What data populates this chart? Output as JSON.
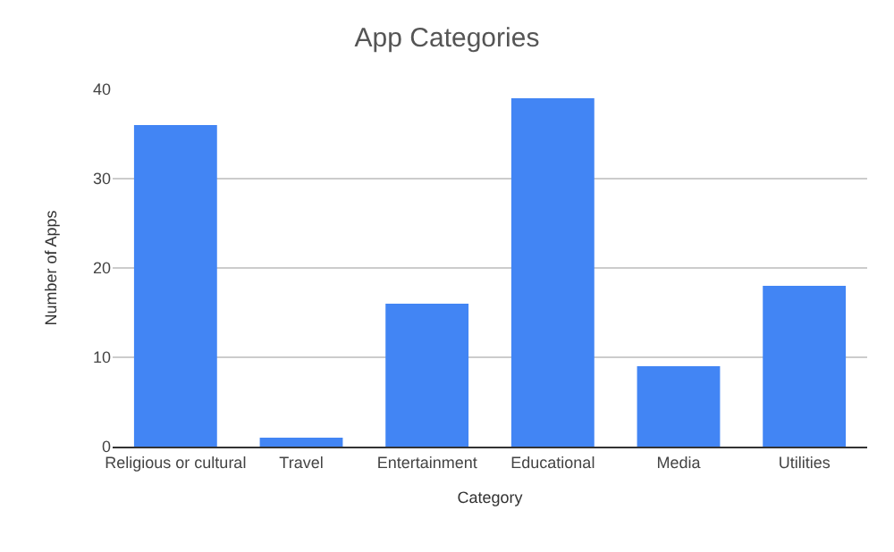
{
  "chart_data": {
    "type": "bar",
    "title": "App Categories",
    "xlabel": "Category",
    "ylabel": "Number of Apps",
    "categories": [
      "Religious or cultural",
      "Travel",
      "Entertainment",
      "Educational",
      "Media",
      "Utilities"
    ],
    "values": [
      36,
      1,
      16,
      39,
      9,
      18
    ],
    "color": "#4285f4",
    "ylim": [
      0,
      40
    ],
    "yticks": [
      0,
      10,
      20,
      30,
      40
    ],
    "grid": "y",
    "legend": false
  }
}
